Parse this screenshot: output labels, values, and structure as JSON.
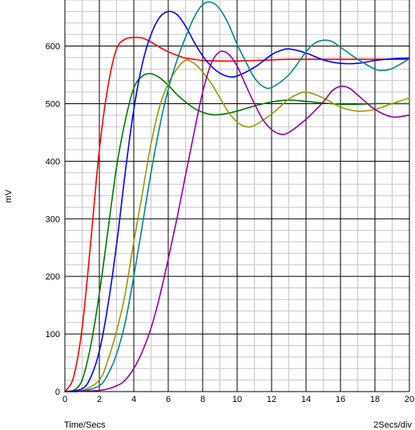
{
  "chart_data": {
    "type": "line",
    "title": "",
    "xlabel": "Time/Secs",
    "ylabel": "mV",
    "x_scale_note": "2Secs/div",
    "xlim": [
      0,
      20
    ],
    "ylim": [
      0,
      680
    ],
    "x_ticks": [
      0,
      2,
      4,
      6,
      8,
      10,
      12,
      14,
      16,
      18,
      20
    ],
    "y_ticks": [
      0,
      100,
      200,
      300,
      400,
      500,
      600
    ],
    "grid": true,
    "legend": "none",
    "series": [
      {
        "color": "#ff0000",
        "points": [
          [
            0,
            0
          ],
          [
            0.5,
            25
          ],
          [
            1,
            110
          ],
          [
            1.5,
            260
          ],
          [
            2,
            420
          ],
          [
            2.5,
            530
          ],
          [
            3,
            595
          ],
          [
            3.5,
            612
          ],
          [
            4,
            615
          ],
          [
            4.5,
            614
          ],
          [
            5,
            607
          ],
          [
            5.5,
            598
          ],
          [
            6,
            590
          ],
          [
            6.5,
            584
          ],
          [
            7,
            579
          ],
          [
            7.5,
            577
          ],
          [
            8,
            575
          ],
          [
            9,
            574
          ],
          [
            10,
            574
          ],
          [
            11,
            575
          ],
          [
            12,
            576
          ],
          [
            13,
            577
          ],
          [
            14,
            577
          ],
          [
            15,
            577
          ],
          [
            16,
            577
          ],
          [
            17,
            577
          ],
          [
            18,
            577
          ],
          [
            19,
            577
          ],
          [
            20,
            577
          ]
        ]
      },
      {
        "color": "#007700",
        "points": [
          [
            0,
            0
          ],
          [
            0.5,
            2
          ],
          [
            1,
            20
          ],
          [
            1.5,
            80
          ],
          [
            2,
            170
          ],
          [
            2.5,
            280
          ],
          [
            3,
            390
          ],
          [
            3.5,
            470
          ],
          [
            4,
            527
          ],
          [
            4.5,
            548
          ],
          [
            5,
            552
          ],
          [
            5.5,
            545
          ],
          [
            6,
            532
          ],
          [
            6.5,
            516
          ],
          [
            7,
            503
          ],
          [
            7.5,
            492
          ],
          [
            8,
            485
          ],
          [
            8.5,
            481
          ],
          [
            9,
            481
          ],
          [
            10,
            487
          ],
          [
            11,
            496
          ],
          [
            12,
            503
          ],
          [
            13,
            506
          ],
          [
            14,
            504
          ],
          [
            15,
            501
          ],
          [
            16,
            499
          ],
          [
            17,
            499
          ],
          [
            18,
            500
          ],
          [
            19,
            500
          ],
          [
            20,
            500
          ]
        ]
      },
      {
        "color": "#0000ff",
        "points": [
          [
            0,
            0
          ],
          [
            1,
            5
          ],
          [
            1.5,
            25
          ],
          [
            2,
            70
          ],
          [
            2.5,
            150
          ],
          [
            3,
            255
          ],
          [
            3.5,
            380
          ],
          [
            4,
            490
          ],
          [
            4.5,
            570
          ],
          [
            5,
            620
          ],
          [
            5.5,
            650
          ],
          [
            6,
            660
          ],
          [
            6.5,
            655
          ],
          [
            7,
            635
          ],
          [
            7.5,
            607
          ],
          [
            8,
            583
          ],
          [
            8.5,
            565
          ],
          [
            9,
            553
          ],
          [
            9.5,
            547
          ],
          [
            10,
            548
          ],
          [
            11,
            563
          ],
          [
            12,
            585
          ],
          [
            12.5,
            592
          ],
          [
            13,
            595
          ],
          [
            14,
            588
          ],
          [
            15,
            576
          ],
          [
            16,
            570
          ],
          [
            17,
            570
          ],
          [
            18,
            575
          ],
          [
            19,
            578
          ],
          [
            20,
            579
          ]
        ]
      },
      {
        "color": "#999900",
        "points": [
          [
            0,
            0
          ],
          [
            1,
            2
          ],
          [
            2,
            20
          ],
          [
            2.5,
            55
          ],
          [
            3,
            105
          ],
          [
            3.5,
            170
          ],
          [
            4,
            260
          ],
          [
            4.5,
            345
          ],
          [
            5,
            430
          ],
          [
            5.5,
            495
          ],
          [
            6,
            535
          ],
          [
            6.5,
            560
          ],
          [
            7,
            575
          ],
          [
            7.5,
            570
          ],
          [
            8,
            555
          ],
          [
            8.5,
            535
          ],
          [
            9,
            510
          ],
          [
            9.5,
            485
          ],
          [
            10,
            468
          ],
          [
            10.5,
            460
          ],
          [
            11,
            462
          ],
          [
            12,
            482
          ],
          [
            13,
            508
          ],
          [
            13.5,
            516
          ],
          [
            14,
            520
          ],
          [
            15,
            510
          ],
          [
            16,
            494
          ],
          [
            17,
            487
          ],
          [
            18,
            490
          ],
          [
            19,
            500
          ],
          [
            20,
            510
          ]
        ]
      },
      {
        "color": "#008888",
        "points": [
          [
            0,
            0
          ],
          [
            1,
            1
          ],
          [
            2,
            10
          ],
          [
            2.5,
            30
          ],
          [
            3,
            65
          ],
          [
            3.5,
            120
          ],
          [
            4,
            200
          ],
          [
            4.5,
            290
          ],
          [
            5,
            380
          ],
          [
            5.5,
            460
          ],
          [
            6,
            525
          ],
          [
            6.5,
            575
          ],
          [
            7,
            615
          ],
          [
            7.5,
            650
          ],
          [
            8,
            672
          ],
          [
            8.5,
            676
          ],
          [
            9,
            664
          ],
          [
            9.5,
            638
          ],
          [
            10,
            603
          ],
          [
            10.5,
            573
          ],
          [
            11,
            545
          ],
          [
            11.5,
            530
          ],
          [
            12,
            528
          ],
          [
            13,
            550
          ],
          [
            14,
            590
          ],
          [
            14.5,
            605
          ],
          [
            15,
            610
          ],
          [
            15.5,
            608
          ],
          [
            16,
            598
          ],
          [
            17,
            577
          ],
          [
            18,
            560
          ],
          [
            18.5,
            558
          ],
          [
            19,
            561
          ],
          [
            20,
            578
          ]
        ]
      },
      {
        "color": "#990099",
        "points": [
          [
            0,
            0
          ],
          [
            2,
            2
          ],
          [
            3,
            10
          ],
          [
            3.5,
            20
          ],
          [
            4,
            40
          ],
          [
            4.5,
            70
          ],
          [
            5,
            110
          ],
          [
            5.5,
            165
          ],
          [
            6,
            230
          ],
          [
            6.5,
            300
          ],
          [
            7,
            375
          ],
          [
            7.5,
            450
          ],
          [
            8,
            520
          ],
          [
            8.5,
            570
          ],
          [
            9,
            590
          ],
          [
            9.5,
            586
          ],
          [
            10,
            565
          ],
          [
            10.5,
            532
          ],
          [
            11,
            500
          ],
          [
            11.5,
            472
          ],
          [
            12,
            455
          ],
          [
            12.5,
            447
          ],
          [
            13,
            450
          ],
          [
            14,
            473
          ],
          [
            15,
            503
          ],
          [
            15.5,
            522
          ],
          [
            16,
            530
          ],
          [
            16.5,
            527
          ],
          [
            17,
            515
          ],
          [
            18,
            490
          ],
          [
            19,
            477
          ],
          [
            20,
            480
          ]
        ]
      }
    ]
  }
}
